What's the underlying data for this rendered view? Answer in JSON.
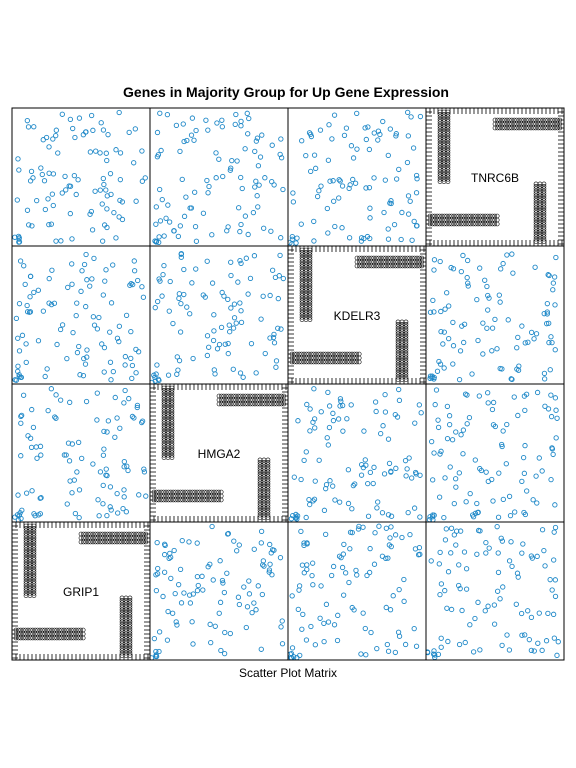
{
  "chart_data": {
    "type": "scatter",
    "title": "Genes in Majority Group for Up Gene Expression",
    "xlabel": "Scatter Plot Matrix",
    "ylabel": "",
    "variables": [
      "GRIP1",
      "HMGA2",
      "KDELR3",
      "TNRC6B"
    ],
    "grid": false,
    "point_color": "#1E88C8",
    "diag_color": "#000000",
    "axes_range": [
      0,
      1
    ],
    "points_per_panel": 100,
    "note": "Off-diagonal panels show ~100 blue open-circle points scattered uniformly across [0,1] with a small cluster near the origin; diagonal panels show the variable name with dense black bars/comb of points along the edges."
  },
  "colors": {
    "panel_border": "#000000",
    "points": "#1E88C8"
  }
}
